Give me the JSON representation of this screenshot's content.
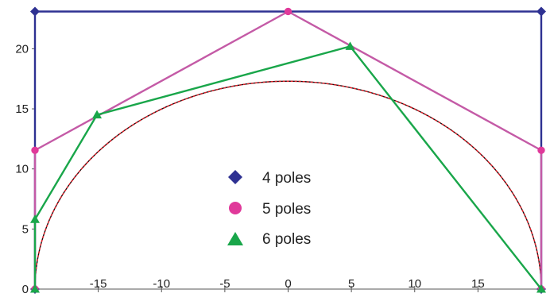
{
  "chart_data": {
    "type": "line",
    "title": "",
    "xlabel": "",
    "ylabel": "",
    "xlim": [
      -20,
      20
    ],
    "ylim": [
      0,
      23
    ],
    "x_ticks": [
      -15,
      -10,
      -5,
      0,
      5,
      10,
      15
    ],
    "y_ticks": [
      0,
      5,
      10,
      15,
      20
    ],
    "grid": false,
    "legend_position": "center",
    "series": [
      {
        "name": "4 poles",
        "marker": "diamond",
        "color": "#2e3192",
        "points": [
          [
            -20,
            0
          ],
          [
            -20,
            23.1
          ],
          [
            20,
            23.1
          ],
          [
            20,
            0
          ]
        ]
      },
      {
        "name": "5 poles",
        "marker": "circle",
        "color": "#e0399a",
        "line_color": "#c45aa6",
        "points": [
          [
            -20,
            0
          ],
          [
            -20,
            11.55
          ],
          [
            0,
            23.1
          ],
          [
            20,
            11.55
          ],
          [
            20,
            0
          ]
        ]
      },
      {
        "name": "6 poles",
        "marker": "triangle",
        "color": "#19a64a",
        "points": [
          [
            -20,
            0
          ],
          [
            -20,
            5.8
          ],
          [
            -15.1,
            14.5
          ],
          [
            4.9,
            20.2
          ],
          [
            20,
            0
          ]
        ]
      }
    ],
    "curves": [
      {
        "shape": "semi-ellipse",
        "center": [
          0,
          0
        ],
        "radius_x": 20,
        "radius_y": 17.3,
        "color": "#111111",
        "style": "solid"
      },
      {
        "shape": "semi-ellipse",
        "center": [
          0,
          0
        ],
        "radius_x": 20,
        "radius_y": 17.3,
        "color": "#e8202a",
        "style": "dashed"
      }
    ]
  }
}
